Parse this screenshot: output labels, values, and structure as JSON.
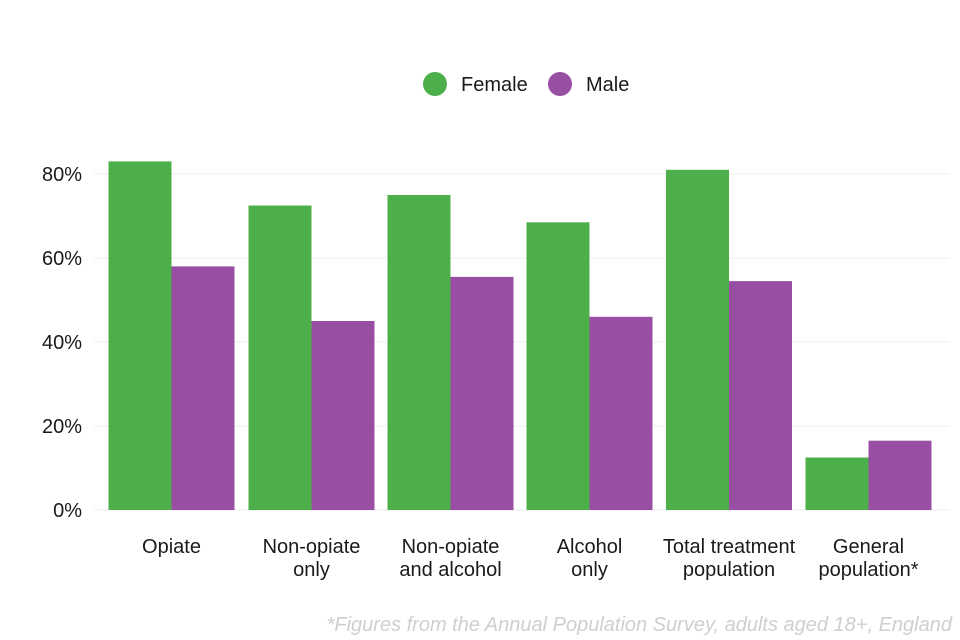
{
  "chart_data": {
    "type": "bar",
    "title": "",
    "xlabel": "",
    "ylabel": "",
    "categories": [
      [
        "Opiate"
      ],
      [
        "Non-opiate",
        "only"
      ],
      [
        "Non-opiate",
        "and alcohol"
      ],
      [
        "Alcohol",
        "only"
      ],
      [
        "Total treatment",
        "population"
      ],
      [
        "General",
        "population*"
      ]
    ],
    "series": [
      {
        "name": "Female",
        "color": "#4daf4a",
        "values": [
          83,
          72.5,
          75,
          68.5,
          81,
          12.5
        ]
      },
      {
        "name": "Male",
        "color": "#984ea3",
        "values": [
          58,
          45,
          55.5,
          46,
          54.5,
          16.5
        ]
      }
    ],
    "ylim": [
      0,
      80
    ],
    "y_ticks": [
      "0%",
      "20%",
      "40%",
      "60%",
      "80%"
    ],
    "y_tick_values": [
      0,
      20,
      40,
      60,
      80
    ],
    "grid": true,
    "legend_position": "top",
    "footnote": "*Figures from the Annual Population Survey, adults aged 18+, England"
  }
}
